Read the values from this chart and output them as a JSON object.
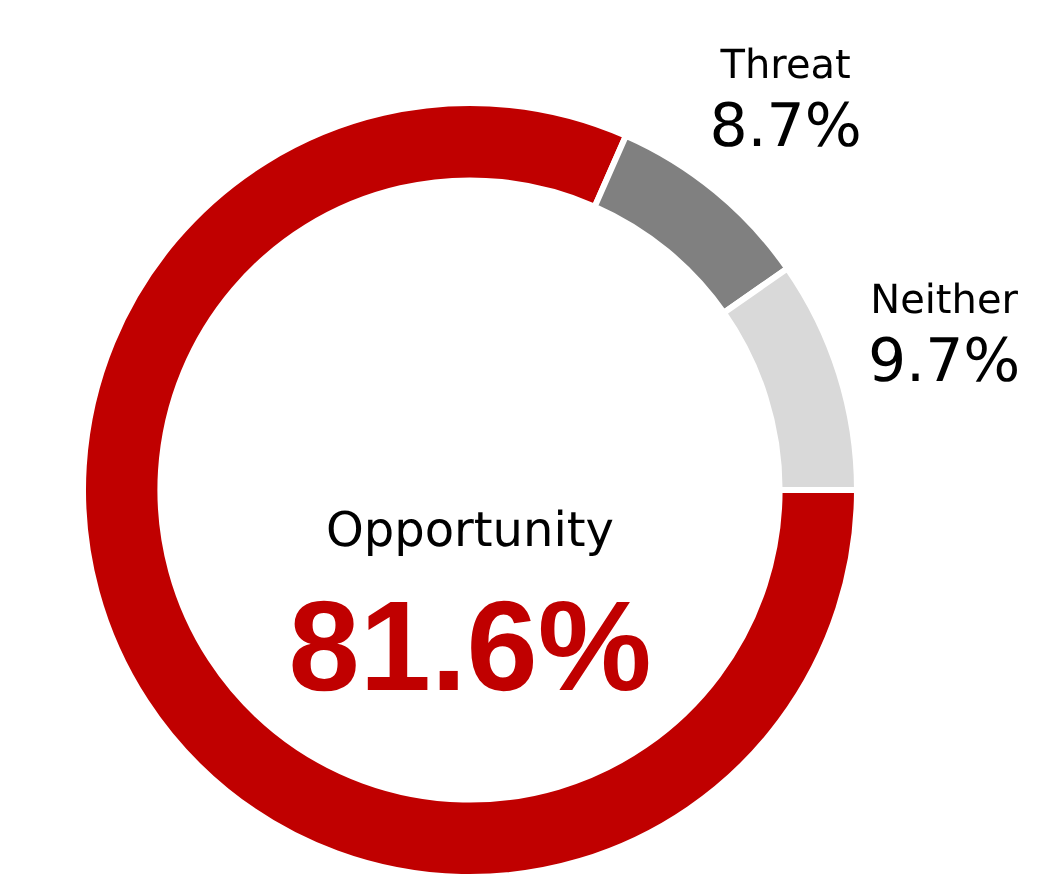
{
  "chart_data": {
    "type": "donut",
    "categories": [
      "Opportunity",
      "Threat",
      "Neither"
    ],
    "values": [
      81.6,
      8.7,
      9.7
    ],
    "colors": [
      "#c00000",
      "#808080",
      "#d9d9d9"
    ],
    "value_labels": [
      "81.6%",
      "8.7%",
      "9.7%"
    ],
    "legend": false
  }
}
